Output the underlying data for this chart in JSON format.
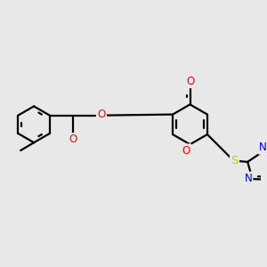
{
  "background_color": "#e8e8e8",
  "bond_color": "#000000",
  "bond_lw": 1.6,
  "atom_colors": {
    "O": "#ff0000",
    "N": "#0000cc",
    "S": "#cccc00",
    "C": "#000000"
  },
  "font_size": 8.5,
  "fig_width": 3.0,
  "fig_height": 3.0,
  "dpi": 100
}
